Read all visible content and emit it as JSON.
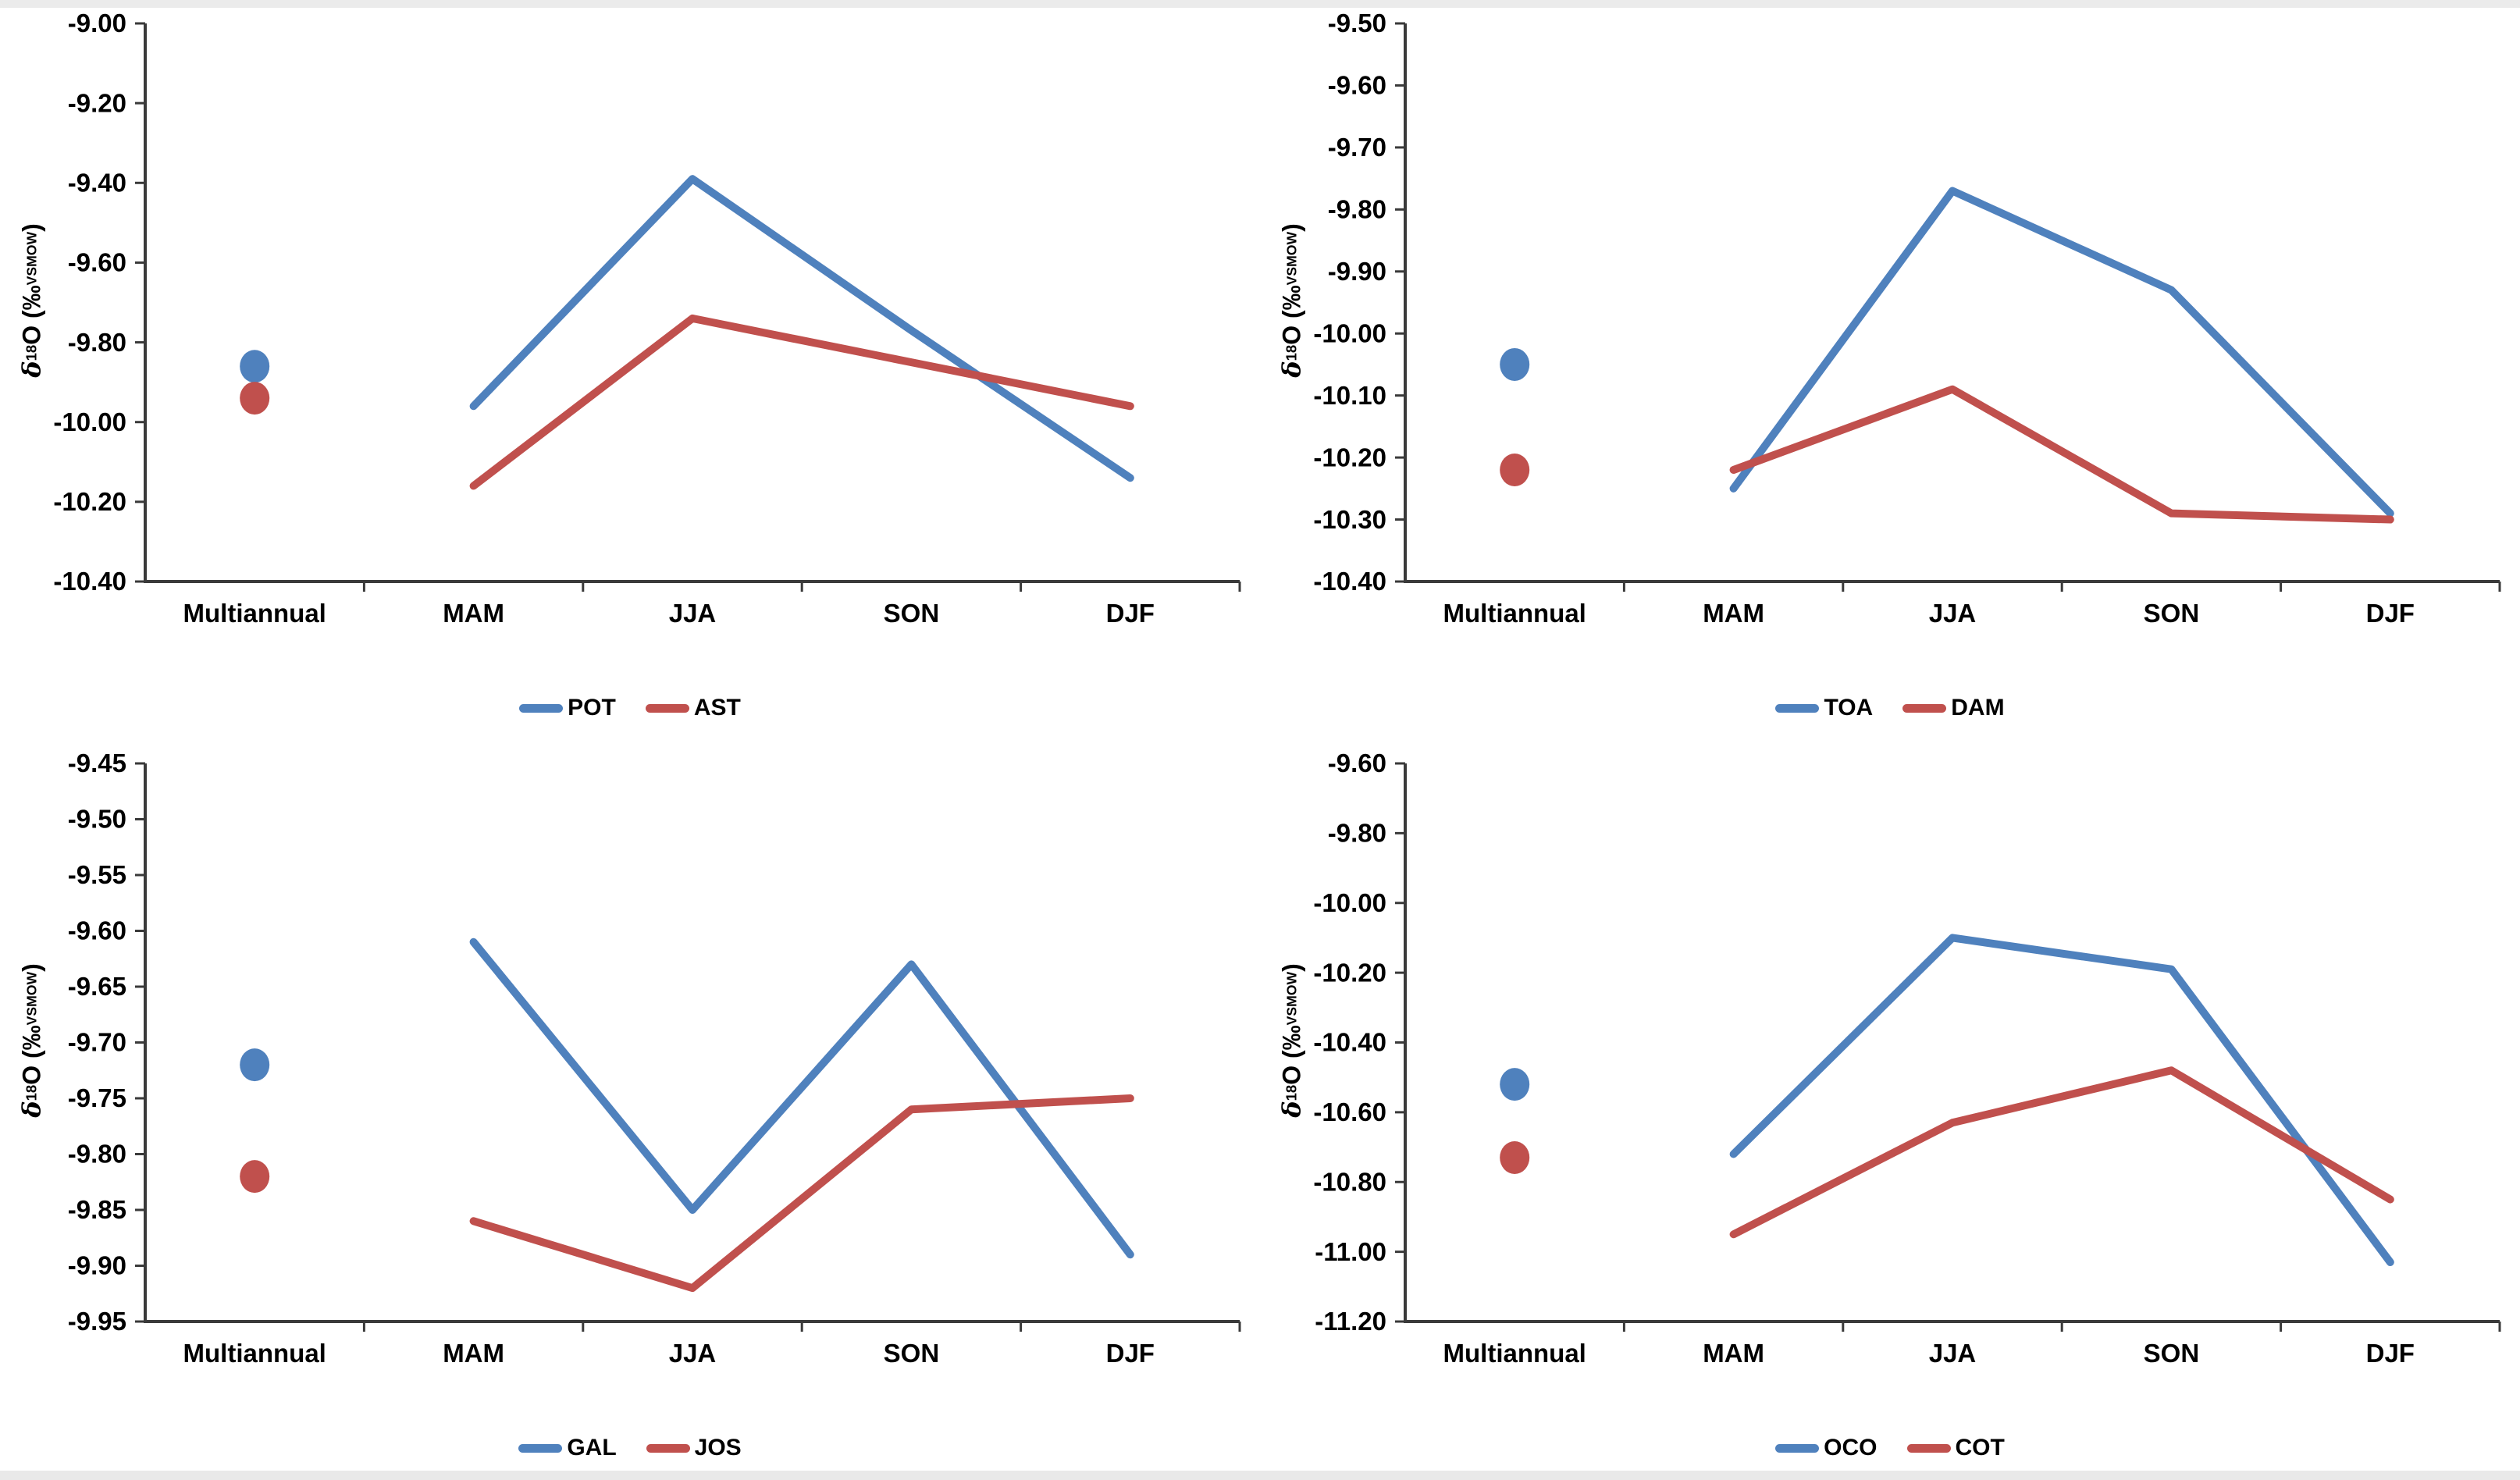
{
  "figure": {
    "background": "#ffffff",
    "edge_strip_color": "#ebebeb",
    "axis_color": "#3a3a3a",
    "text_color": "#000000",
    "series_colors": {
      "blue": "#4F81BD",
      "red": "#C0504D"
    },
    "y_axis_label_text": "δ18O (‰VSMOW)",
    "y_axis_label_parts": {
      "delta": "δ",
      "isotope_mass": "18",
      "element": "O",
      "unit_open": " (‰",
      "unit_subscript": "VSMOW",
      "unit_close": ")"
    }
  },
  "chart_data": [
    {
      "type": "line",
      "panel": "top-left",
      "title": "",
      "xlabel": "",
      "ylabel": "δ18O (‰VSMOW)",
      "categories": [
        "Multiannual",
        "MAM",
        "JJA",
        "SON",
        "DJF"
      ],
      "ylim": [
        -10.4,
        -9.0
      ],
      "ytick_step": 0.2,
      "yticks": [
        "-9.00",
        "-9.20",
        "-9.40",
        "-9.60",
        "-9.80",
        "-10.00",
        "-10.20",
        "-10.40"
      ],
      "legend_position": "bottom",
      "grid": false,
      "series": [
        {
          "name": "POT",
          "color": "#4F81BD",
          "multiannual": -9.86,
          "seasonal_values": [
            -9.96,
            -9.39,
            -9.77,
            -10.14
          ]
        },
        {
          "name": "AST",
          "color": "#C0504D",
          "multiannual": -9.94,
          "seasonal_values": [
            -10.16,
            -9.74,
            -9.85,
            -9.96
          ]
        }
      ]
    },
    {
      "type": "line",
      "panel": "top-right",
      "title": "",
      "xlabel": "",
      "ylabel": "δ18O (‰VSMOW)",
      "categories": [
        "Multiannual",
        "MAM",
        "JJA",
        "SON",
        "DJF"
      ],
      "ylim": [
        -10.4,
        -9.5
      ],
      "ytick_step": 0.1,
      "yticks": [
        "-9.50",
        "-9.60",
        "-9.70",
        "-9.80",
        "-9.90",
        "-10.00",
        "-10.10",
        "-10.20",
        "-10.30",
        "-10.40"
      ],
      "legend_position": "bottom",
      "grid": false,
      "series": [
        {
          "name": "TOA",
          "color": "#4F81BD",
          "multiannual": -10.05,
          "seasonal_values": [
            -10.25,
            -9.77,
            -9.93,
            -10.29
          ]
        },
        {
          "name": "DAM",
          "color": "#C0504D",
          "multiannual": -10.22,
          "seasonal_values": [
            -10.22,
            -10.09,
            -10.29,
            -10.3
          ]
        }
      ]
    },
    {
      "type": "line",
      "panel": "bottom-left",
      "title": "",
      "xlabel": "",
      "ylabel": "δ18O (‰VSMOW)",
      "categories": [
        "Multiannual",
        "MAM",
        "JJA",
        "SON",
        "DJF"
      ],
      "ylim": [
        -9.95,
        -9.45
      ],
      "ytick_step": 0.05,
      "yticks": [
        "-9.45",
        "-9.50",
        "-9.55",
        "-9.60",
        "-9.65",
        "-9.70",
        "-9.75",
        "-9.80",
        "-9.85",
        "-9.90",
        "-9.95"
      ],
      "legend_position": "bottom",
      "grid": false,
      "series": [
        {
          "name": "GAL",
          "color": "#4F81BD",
          "multiannual": -9.72,
          "seasonal_values": [
            -9.61,
            -9.85,
            -9.63,
            -9.89
          ]
        },
        {
          "name": "JOS",
          "color": "#C0504D",
          "multiannual": -9.82,
          "seasonal_values": [
            -9.86,
            -9.92,
            -9.76,
            -9.75
          ]
        }
      ]
    },
    {
      "type": "line",
      "panel": "bottom-right",
      "title": "",
      "xlabel": "",
      "ylabel": "δ18O (‰VSMOW)",
      "categories": [
        "Multiannual",
        "MAM",
        "JJA",
        "SON",
        "DJF"
      ],
      "ylim": [
        -11.2,
        -9.6
      ],
      "ytick_step": 0.2,
      "yticks": [
        "-9.60",
        "-9.80",
        "-10.00",
        "-10.20",
        "-10.40",
        "-10.60",
        "-10.80",
        "-11.00",
        "-11.20"
      ],
      "legend_position": "bottom",
      "grid": false,
      "series": [
        {
          "name": "OCO",
          "color": "#4F81BD",
          "multiannual": -10.52,
          "seasonal_values": [
            -10.72,
            -10.1,
            -10.19,
            -11.03
          ]
        },
        {
          "name": "COT",
          "color": "#C0504D",
          "multiannual": -10.73,
          "seasonal_values": [
            -10.95,
            -10.63,
            -10.48,
            -10.85
          ]
        }
      ]
    }
  ]
}
